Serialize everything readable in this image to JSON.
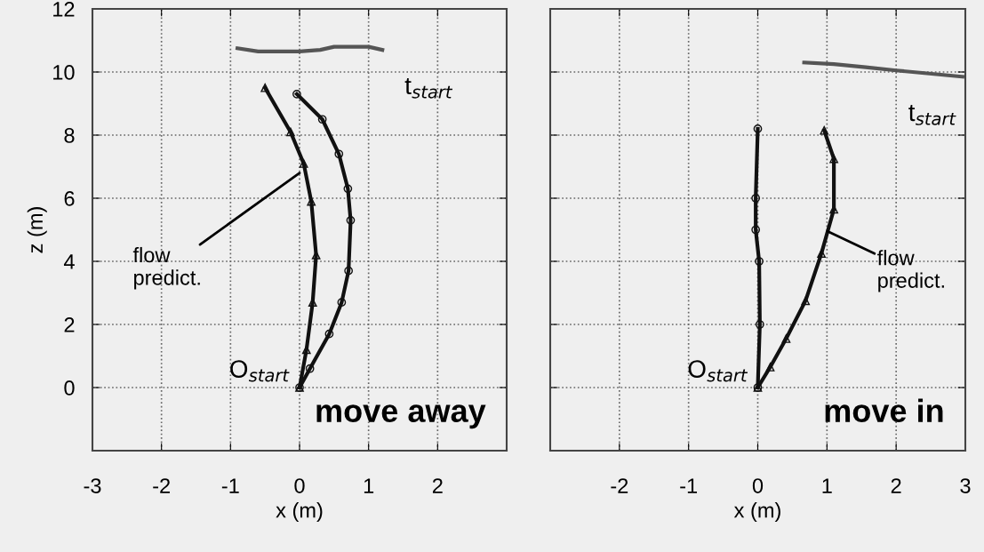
{
  "chart_data": [
    {
      "type": "line",
      "xlabel": "x (m)",
      "ylabel": "z (m)",
      "xlim": [
        -3,
        3
      ],
      "ylim": [
        -2,
        12
      ],
      "xticks": [
        -3,
        -2,
        -1,
        0,
        1,
        2
      ],
      "yticks": [
        0,
        2,
        4,
        6,
        8,
        10,
        12
      ],
      "grid": true,
      "series": [
        {
          "color": "#555555",
          "marker": "none",
          "x": [
            -0.9,
            -0.6,
            -0.3,
            0,
            0.3,
            0.5,
            0.8,
            1.0,
            1.2
          ],
          "values": [
            10.75,
            10.65,
            10.65,
            10.65,
            10.7,
            10.8,
            10.8,
            10.8,
            10.7
          ]
        },
        {
          "color": "#111111",
          "marker": "triangle",
          "x": [
            -0.5,
            -0.13,
            0.06,
            0.17,
            0.24,
            0.19,
            0.1,
            0
          ],
          "values": [
            9.5,
            8.1,
            7.1,
            5.9,
            4.2,
            2.7,
            1.2,
            0
          ]
        },
        {
          "color": "#111111",
          "marker": "circle",
          "x": [
            -0.04,
            0.33,
            0.57,
            0.7,
            0.74,
            0.71,
            0.61,
            0.43,
            0.15,
            0
          ],
          "values": [
            9.3,
            8.5,
            7.4,
            6.3,
            5.3,
            3.7,
            2.7,
            1.7,
            0.6,
            0
          ]
        }
      ],
      "annotations": [
        {
          "text": "t$_{start}$",
          "x": 1.2,
          "y": 10.7
        },
        {
          "text": "O$_{start}$",
          "x": 0,
          "y": 0
        },
        {
          "text": "flow\npredict.",
          "x": 0,
          "y": 6.8
        },
        "move away"
      ]
    },
    {
      "type": "line",
      "xlabel": "x (m)",
      "xlim": [
        -3,
        3
      ],
      "ylim": [
        -2,
        12
      ],
      "xticks": [
        -2,
        -1,
        0,
        1,
        2,
        3
      ],
      "yticks": [
        0,
        2,
        4,
        6,
        8,
        10,
        12
      ],
      "grid": true,
      "tick_labels": "x",
      "series": [
        {
          "color": "#555555",
          "marker": "none",
          "x": [
            0.67,
            1.1,
            1.56,
            2.0,
            2.48,
            2.96
          ],
          "values": [
            10.3,
            10.25,
            10.15,
            10.05,
            9.95,
            9.85
          ]
        },
        {
          "color": "#111111",
          "marker": "circle",
          "x": [
            0,
            -0.03,
            -0.03,
            0.02,
            0.03,
            0
          ],
          "values": [
            8.2,
            6.0,
            5.0,
            4.0,
            2.0,
            0
          ]
        },
        {
          "color": "#111111",
          "marker": "triangle",
          "x": [
            0.96,
            1.1,
            1.1,
            0.92,
            0.69,
            0.41,
            0.18,
            0
          ],
          "values": [
            8.15,
            7.25,
            5.65,
            4.25,
            2.75,
            1.55,
            0.65,
            0
          ]
        }
      ],
      "annotations": [
        {
          "text": "t$_{start}$",
          "x": 2.96,
          "y": 9.85
        },
        {
          "text": "O$_{start}$",
          "x": 0,
          "y": 0
        },
        {
          "text": "flow\npredict.",
          "x": 1.01,
          "y": 4.95
        },
        "move in"
      ]
    }
  ]
}
